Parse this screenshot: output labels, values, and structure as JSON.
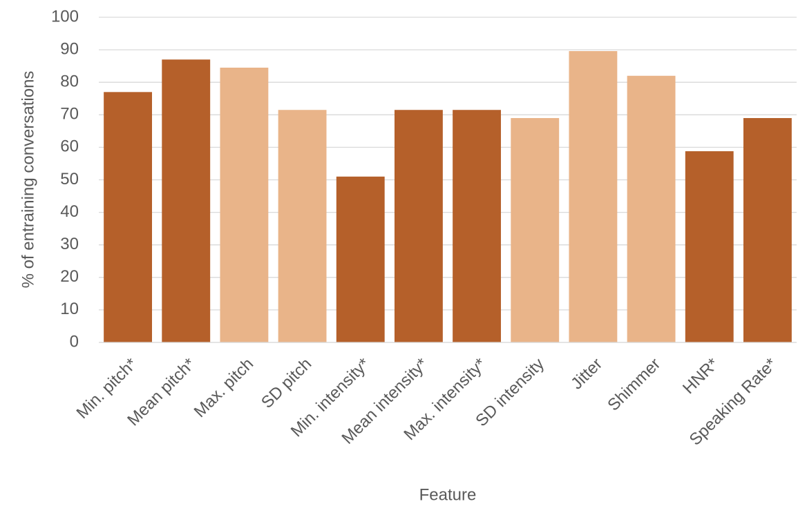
{
  "chart_data": {
    "type": "bar",
    "x_label": "Feature",
    "y_label": "% of entraining conversations",
    "categories": [
      "Min. pitch*",
      "Mean pitch*",
      "Max. pitch",
      "SD pitch",
      "Min. intensity*",
      "Mean intensity*",
      "Max. intensity*",
      "SD intensity",
      "Jitter",
      "Shimmer",
      "HNR*",
      "Speaking Rate*"
    ],
    "values": [
      77,
      87,
      84.5,
      71.5,
      51,
      71.5,
      71.5,
      69,
      89.6,
      82,
      58.8,
      69
    ],
    "colors": [
      "#b5602a",
      "#b5602a",
      "#e9b489",
      "#e9b489",
      "#b5602a",
      "#b5602a",
      "#b5602a",
      "#e9b489",
      "#e9b489",
      "#e9b489",
      "#b5602a",
      "#b5602a"
    ],
    "ylim": [
      0,
      100
    ],
    "yticks": [
      0,
      10,
      20,
      30,
      40,
      50,
      60,
      70,
      80,
      90,
      100
    ],
    "grid": true
  }
}
